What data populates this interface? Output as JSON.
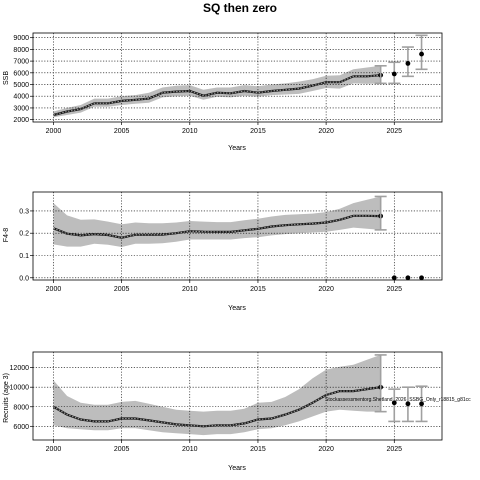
{
  "figure": {
    "title": "SQ then zero"
  },
  "chart_data": [
    {
      "type": "line",
      "xlabel": "Years",
      "ylabel": "SSB",
      "xlim": [
        1998.5,
        2028.5
      ],
      "ylim": [
        1800,
        9400
      ],
      "xticks": [
        2000,
        2005,
        2010,
        2015,
        2020,
        2025
      ],
      "yticks": [
        2000,
        3000,
        4000,
        5000,
        6000,
        7000,
        8000,
        9000
      ],
      "grid": true,
      "series": [
        {
          "x": [
            2000,
            2001,
            2002,
            2003,
            2004,
            2005,
            2006,
            2007,
            2008,
            2009,
            2010,
            2011,
            2012,
            2013,
            2014,
            2015,
            2016,
            2017,
            2018,
            2019,
            2020,
            2021,
            2022,
            2023,
            2024
          ],
          "values": [
            2400,
            2700,
            2900,
            3400,
            3400,
            3600,
            3700,
            3800,
            4300,
            4400,
            4450,
            4050,
            4300,
            4250,
            4450,
            4300,
            4450,
            4550,
            4650,
            4900,
            5200,
            5200,
            5700,
            5700,
            5800
          ],
          "lower": [
            2200,
            2400,
            2600,
            3100,
            3100,
            3250,
            3350,
            3450,
            3900,
            4000,
            4050,
            3700,
            3950,
            3900,
            4050,
            3950,
            4100,
            4150,
            4200,
            4450,
            4700,
            4650,
            5100,
            5050,
            5100
          ],
          "upper": [
            2700,
            3000,
            3250,
            3800,
            3800,
            4000,
            4100,
            4300,
            4750,
            4900,
            4950,
            4550,
            4750,
            4750,
            4950,
            4850,
            5000,
            5100,
            5250,
            5450,
            5750,
            5800,
            6300,
            6450,
            6600
          ]
        }
      ],
      "projection": {
        "x": [
          2025,
          2026,
          2027
        ],
        "values": [
          5900,
          6800,
          7600
        ],
        "lower": [
          5100,
          5700,
          6300
        ],
        "upper": [
          6900,
          8200,
          9200
        ]
      }
    },
    {
      "type": "line",
      "xlabel": "Years",
      "ylabel": "F4-8",
      "xlim": [
        1998.5,
        2028.5
      ],
      "ylim": [
        -0.01,
        0.385
      ],
      "xticks": [
        2000,
        2005,
        2010,
        2015,
        2020,
        2025
      ],
      "yticks": [
        0.0,
        0.1,
        0.2,
        0.3
      ],
      "ytick_labels": [
        "0.0",
        "0.1",
        "0.2",
        "0.3"
      ],
      "grid": true,
      "series": [
        {
          "x": [
            2000,
            2001,
            2002,
            2003,
            2004,
            2005,
            2006,
            2007,
            2008,
            2009,
            2010,
            2011,
            2012,
            2013,
            2014,
            2015,
            2016,
            2017,
            2018,
            2019,
            2020,
            2021,
            2022,
            2023,
            2024
          ],
          "values": [
            0.222,
            0.198,
            0.19,
            0.196,
            0.192,
            0.18,
            0.193,
            0.193,
            0.194,
            0.2,
            0.209,
            0.207,
            0.206,
            0.206,
            0.213,
            0.22,
            0.23,
            0.236,
            0.24,
            0.243,
            0.248,
            0.26,
            0.278,
            0.278,
            0.277
          ],
          "lower": [
            0.15,
            0.14,
            0.14,
            0.153,
            0.148,
            0.138,
            0.153,
            0.153,
            0.155,
            0.162,
            0.172,
            0.172,
            0.172,
            0.172,
            0.178,
            0.182,
            0.19,
            0.196,
            0.2,
            0.203,
            0.207,
            0.215,
            0.225,
            0.22,
            0.215
          ],
          "upper": [
            0.335,
            0.28,
            0.26,
            0.262,
            0.252,
            0.24,
            0.248,
            0.245,
            0.245,
            0.248,
            0.255,
            0.252,
            0.25,
            0.25,
            0.258,
            0.265,
            0.275,
            0.282,
            0.285,
            0.288,
            0.295,
            0.31,
            0.335,
            0.35,
            0.365
          ]
        }
      ],
      "projection": {
        "x": [
          2025,
          2026,
          2027
        ],
        "values": [
          0,
          0,
          0
        ],
        "lower": [
          0,
          0,
          0
        ],
        "upper": [
          0,
          0,
          0
        ]
      }
    },
    {
      "type": "line",
      "xlabel": "Years",
      "ylabel": "Recruits (age 3)",
      "xlim": [
        1998.5,
        2028.5
      ],
      "ylim": [
        4600,
        13600
      ],
      "xticks": [
        2000,
        2005,
        2010,
        2015,
        2020,
        2025
      ],
      "yticks": [
        6000,
        8000,
        10000,
        12000
      ],
      "grid": true,
      "annotation": "Stockassessmentorg.Shetland_2026_SSBG_Only_r18815_g81cc",
      "series": [
        {
          "x": [
            2000,
            2001,
            2002,
            2003,
            2004,
            2005,
            2006,
            2007,
            2008,
            2009,
            2010,
            2011,
            2012,
            2013,
            2014,
            2015,
            2016,
            2017,
            2018,
            2019,
            2020,
            2021,
            2022,
            2023,
            2024
          ],
          "values": [
            8000,
            7200,
            6700,
            6500,
            6500,
            6800,
            6800,
            6600,
            6400,
            6200,
            6100,
            6000,
            6100,
            6100,
            6300,
            6700,
            6800,
            7200,
            7700,
            8400,
            9200,
            9600,
            9600,
            9800,
            10000
          ],
          "lower": [
            6100,
            5800,
            5700,
            5600,
            5600,
            5800,
            5800,
            5600,
            5400,
            5300,
            5200,
            5100,
            5200,
            5200,
            5400,
            5700,
            5800,
            6100,
            6500,
            7000,
            7500,
            7700,
            7600,
            7500,
            7500
          ],
          "upper": [
            10700,
            9100,
            8400,
            8200,
            8200,
            8500,
            8600,
            8300,
            8000,
            7700,
            7600,
            7500,
            7600,
            7600,
            7800,
            8400,
            8500,
            9000,
            9800,
            10900,
            11800,
            12100,
            12300,
            12800,
            13300
          ]
        }
      ],
      "projection": {
        "x": [
          2025,
          2026,
          2027
        ],
        "values": [
          8400,
          8300,
          8300
        ],
        "lower": [
          6500,
          6500,
          6500
        ],
        "upper": [
          9800,
          10000,
          10100
        ]
      }
    }
  ]
}
